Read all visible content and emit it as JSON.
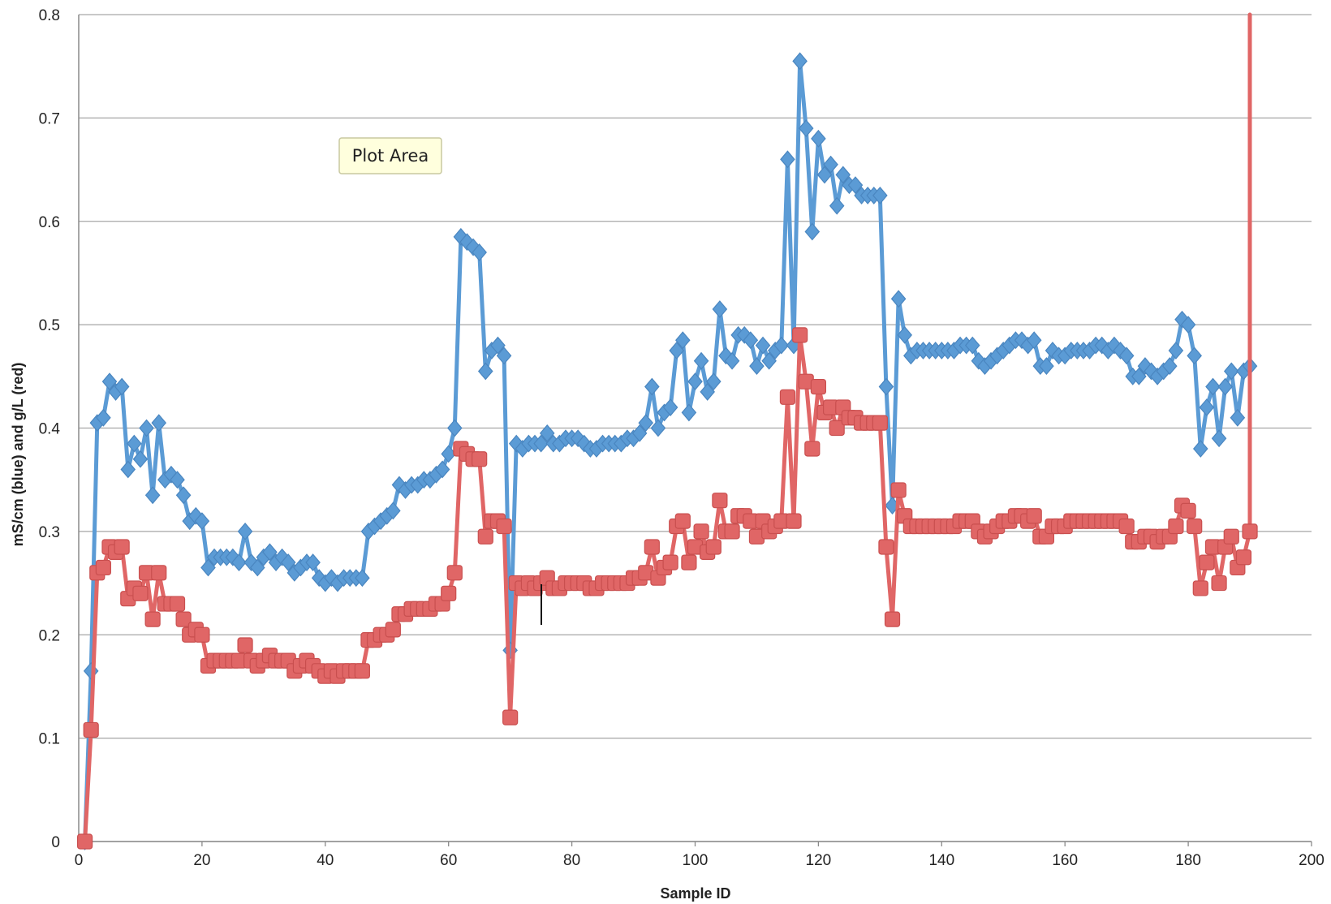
{
  "chart_data": {
    "type": "line",
    "title": "",
    "xlabel": "Sample ID",
    "ylabel": "mS/cm (blue)  and  g/L (red)",
    "xlim": [
      0,
      200
    ],
    "ylim": [
      0,
      0.8
    ],
    "x_ticks": [
      "0",
      "20",
      "40",
      "60",
      "80",
      "100",
      "120",
      "140",
      "160",
      "180",
      "200"
    ],
    "y_ticks": [
      "0",
      "0.1",
      "0.2",
      "0.3",
      "0.4",
      "0.5",
      "0.6",
      "0.7",
      "0.8"
    ],
    "grid": "horizontal",
    "legend": "none",
    "tooltip": "Plot Area",
    "series": [
      {
        "color": "#5b9bd5",
        "marker": "diamond",
        "x": [
          1,
          2,
          3,
          4,
          5,
          6,
          7,
          8,
          9,
          10,
          11,
          12,
          13,
          14,
          15,
          16,
          17,
          18,
          19,
          20,
          21,
          22,
          23,
          24,
          25,
          26,
          27,
          28,
          29,
          30,
          31,
          32,
          33,
          34,
          35,
          36,
          37,
          38,
          39,
          40,
          41,
          42,
          43,
          44,
          45,
          46,
          47,
          48,
          49,
          50,
          51,
          52,
          53,
          54,
          55,
          56,
          57,
          58,
          59,
          60,
          61,
          62,
          63,
          64,
          65,
          66,
          67,
          68,
          69,
          70,
          71,
          72,
          73,
          74,
          75,
          76,
          77,
          78,
          79,
          80,
          81,
          82,
          83,
          84,
          85,
          86,
          87,
          88,
          89,
          90,
          91,
          92,
          93,
          94,
          95,
          96,
          97,
          98,
          99,
          100,
          101,
          102,
          103,
          104,
          105,
          106,
          107,
          108,
          109,
          110,
          111,
          112,
          113,
          114,
          115,
          116,
          117,
          118,
          119,
          120,
          121,
          122,
          123,
          124,
          125,
          126,
          127,
          128,
          129,
          130,
          131,
          132,
          133,
          134,
          135,
          136,
          137,
          138,
          139,
          140,
          141,
          142,
          143,
          144,
          145,
          146,
          147,
          148,
          149,
          150,
          151,
          152,
          153,
          154,
          155,
          156,
          157,
          158,
          159,
          160,
          161,
          162,
          163,
          164,
          165,
          166,
          167,
          168,
          169,
          170,
          171,
          172,
          173,
          174,
          175,
          176,
          177,
          178,
          179,
          180,
          181,
          182,
          183,
          184,
          185,
          186,
          187,
          188,
          189,
          190
        ],
        "values": [
          0.0,
          0.165,
          0.405,
          0.41,
          0.445,
          0.435,
          0.44,
          0.36,
          0.385,
          0.37,
          0.4,
          0.335,
          0.405,
          0.35,
          0.355,
          0.35,
          0.335,
          0.31,
          0.315,
          0.31,
          0.265,
          0.275,
          0.275,
          0.275,
          0.275,
          0.27,
          0.3,
          0.27,
          0.265,
          0.275,
          0.28,
          0.27,
          0.275,
          0.27,
          0.26,
          0.265,
          0.27,
          0.27,
          0.255,
          0.25,
          0.255,
          0.25,
          0.255,
          0.255,
          0.255,
          0.255,
          0.3,
          0.305,
          0.31,
          0.315,
          0.32,
          0.345,
          0.34,
          0.345,
          0.345,
          0.35,
          0.35,
          0.355,
          0.36,
          0.375,
          0.4,
          0.585,
          0.58,
          0.575,
          0.57,
          0.455,
          0.475,
          0.48,
          0.47,
          0.185,
          0.385,
          0.38,
          0.385,
          0.385,
          0.385,
          0.395,
          0.385,
          0.385,
          0.39,
          0.39,
          0.39,
          0.385,
          0.38,
          0.38,
          0.385,
          0.385,
          0.385,
          0.385,
          0.39,
          0.39,
          0.395,
          0.405,
          0.44,
          0.4,
          0.415,
          0.42,
          0.475,
          0.485,
          0.415,
          0.445,
          0.465,
          0.435,
          0.445,
          0.515,
          0.47,
          0.465,
          0.49,
          0.49,
          0.485,
          0.46,
          0.48,
          0.465,
          0.475,
          0.48,
          0.66,
          0.48,
          0.755,
          0.69,
          0.59,
          0.68,
          0.645,
          0.655,
          0.615,
          0.645,
          0.635,
          0.635,
          0.625,
          0.625,
          0.625,
          0.625,
          0.44,
          0.325,
          0.525,
          0.49,
          0.47,
          0.475,
          0.475,
          0.475,
          0.475,
          0.475,
          0.475,
          0.475,
          0.48,
          0.48,
          0.48,
          0.465,
          0.46,
          0.465,
          0.47,
          0.475,
          0.48,
          0.485,
          0.485,
          0.48,
          0.485,
          0.46,
          0.46,
          0.475,
          0.47,
          0.47,
          0.475,
          0.475,
          0.475,
          0.475,
          0.48,
          0.48,
          0.475,
          0.48,
          0.475,
          0.47,
          0.45,
          0.45,
          0.46,
          0.455,
          0.45,
          0.455,
          0.46,
          0.475,
          0.505,
          0.5,
          0.47,
          0.38,
          0.42,
          0.44,
          0.39,
          0.44,
          0.455,
          0.41,
          0.455,
          0.46
        ]
      },
      {
        "color": "#e06666",
        "marker": "square",
        "x": [
          1,
          2,
          3,
          4,
          5,
          6,
          7,
          8,
          9,
          10,
          11,
          12,
          13,
          14,
          15,
          16,
          17,
          18,
          19,
          20,
          21,
          22,
          23,
          24,
          25,
          26,
          27,
          28,
          29,
          30,
          31,
          32,
          33,
          34,
          35,
          36,
          37,
          38,
          39,
          40,
          41,
          42,
          43,
          44,
          45,
          46,
          47,
          48,
          49,
          50,
          51,
          52,
          53,
          54,
          55,
          56,
          57,
          58,
          59,
          60,
          61,
          62,
          63,
          64,
          65,
          66,
          67,
          68,
          69,
          70,
          71,
          72,
          73,
          74,
          75,
          76,
          77,
          78,
          79,
          80,
          81,
          82,
          83,
          84,
          85,
          86,
          87,
          88,
          89,
          90,
          91,
          92,
          93,
          94,
          95,
          96,
          97,
          98,
          99,
          100,
          101,
          102,
          103,
          104,
          105,
          106,
          107,
          108,
          109,
          110,
          111,
          112,
          113,
          114,
          115,
          116,
          117,
          118,
          119,
          120,
          121,
          122,
          123,
          124,
          125,
          126,
          127,
          128,
          129,
          130,
          131,
          132,
          133,
          134,
          135,
          136,
          137,
          138,
          139,
          140,
          141,
          142,
          143,
          144,
          145,
          146,
          147,
          148,
          149,
          150,
          151,
          152,
          153,
          154,
          155,
          156,
          157,
          158,
          159,
          160,
          161,
          162,
          163,
          164,
          165,
          166,
          167,
          168,
          169,
          170,
          171,
          172,
          173,
          174,
          175,
          176,
          177,
          178,
          179,
          180,
          181,
          182,
          183,
          184,
          185,
          186,
          187,
          188,
          189,
          190,
          190
        ],
        "values": [
          0.0,
          0.108,
          0.26,
          0.265,
          0.285,
          0.28,
          0.285,
          0.235,
          0.245,
          0.24,
          0.26,
          0.215,
          0.26,
          0.23,
          0.23,
          0.23,
          0.215,
          0.2,
          0.205,
          0.2,
          0.17,
          0.175,
          0.175,
          0.175,
          0.175,
          0.175,
          0.19,
          0.175,
          0.17,
          0.175,
          0.18,
          0.175,
          0.175,
          0.175,
          0.165,
          0.17,
          0.175,
          0.17,
          0.165,
          0.16,
          0.165,
          0.16,
          0.165,
          0.165,
          0.165,
          0.165,
          0.195,
          0.195,
          0.2,
          0.2,
          0.205,
          0.22,
          0.22,
          0.225,
          0.225,
          0.225,
          0.225,
          0.23,
          0.23,
          0.24,
          0.26,
          0.38,
          0.375,
          0.37,
          0.37,
          0.295,
          0.31,
          0.31,
          0.305,
          0.12,
          0.25,
          0.245,
          0.25,
          0.245,
          0.25,
          0.255,
          0.245,
          0.245,
          0.25,
          0.25,
          0.25,
          0.25,
          0.245,
          0.245,
          0.25,
          0.25,
          0.25,
          0.25,
          0.25,
          0.255,
          0.255,
          0.26,
          0.285,
          0.255,
          0.265,
          0.27,
          0.305,
          0.31,
          0.27,
          0.285,
          0.3,
          0.28,
          0.285,
          0.33,
          0.3,
          0.3,
          0.315,
          0.315,
          0.31,
          0.295,
          0.31,
          0.3,
          0.305,
          0.31,
          0.43,
          0.31,
          0.49,
          0.445,
          0.38,
          0.44,
          0.415,
          0.42,
          0.4,
          0.42,
          0.41,
          0.41,
          0.405,
          0.405,
          0.405,
          0.405,
          0.285,
          0.215,
          0.34,
          0.315,
          0.305,
          0.305,
          0.305,
          0.305,
          0.305,
          0.305,
          0.305,
          0.305,
          0.31,
          0.31,
          0.31,
          0.3,
          0.295,
          0.3,
          0.305,
          0.31,
          0.31,
          0.315,
          0.315,
          0.31,
          0.315,
          0.295,
          0.295,
          0.305,
          0.305,
          0.305,
          0.31,
          0.31,
          0.31,
          0.31,
          0.31,
          0.31,
          0.31,
          0.31,
          0.31,
          0.305,
          0.29,
          0.29,
          0.295,
          0.295,
          0.29,
          0.295,
          0.295,
          0.305,
          0.325,
          0.32,
          0.305,
          0.245,
          0.27,
          0.285,
          0.25,
          0.285,
          0.295,
          0.265,
          0.275,
          0.3,
          0.8
        ]
      }
    ]
  }
}
